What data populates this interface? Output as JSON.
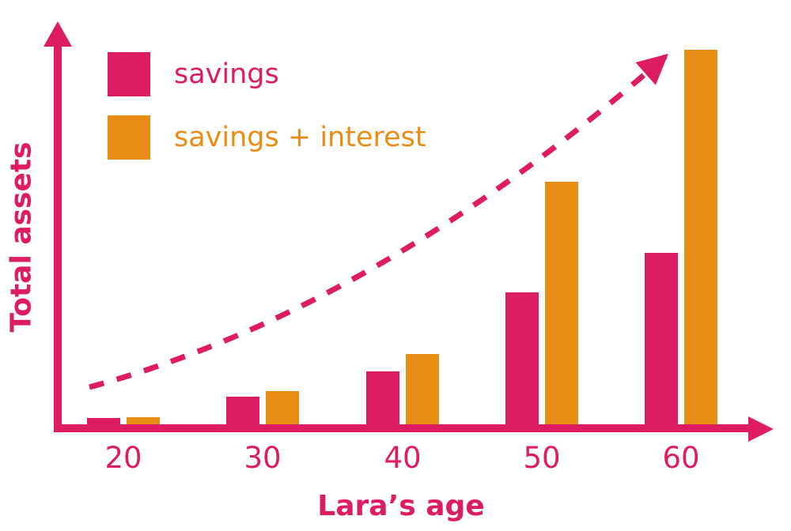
{
  "colors": {
    "pink": "#DE1C63",
    "orange": "#E98C16",
    "background": "#FFFFFF"
  },
  "chart_data": {
    "type": "bar",
    "title": "",
    "xlabel": "Lara’s age",
    "ylabel": "Total assets",
    "categories": [
      "20",
      "30",
      "40",
      "50",
      "60"
    ],
    "series": [
      {
        "name": "savings",
        "color": "#DE1C63",
        "values": [
          8,
          35,
          67,
          167,
          217
        ]
      },
      {
        "name": "savings + interest",
        "color": "#E98C16",
        "values": [
          9,
          42,
          89,
          307,
          474
        ]
      }
    ],
    "values_unit": "relative bar height (no y-axis scale shown)",
    "ylim": [
      0,
      500
    ],
    "grid": false,
    "legend_position": "top-left inside plot",
    "annotation": {
      "type": "dashed-curved-arrow",
      "color": "#DE1C63",
      "description": "dashed pink arrow curving upward from lower-left to upper-right, indicating accelerating growth of total assets"
    }
  }
}
